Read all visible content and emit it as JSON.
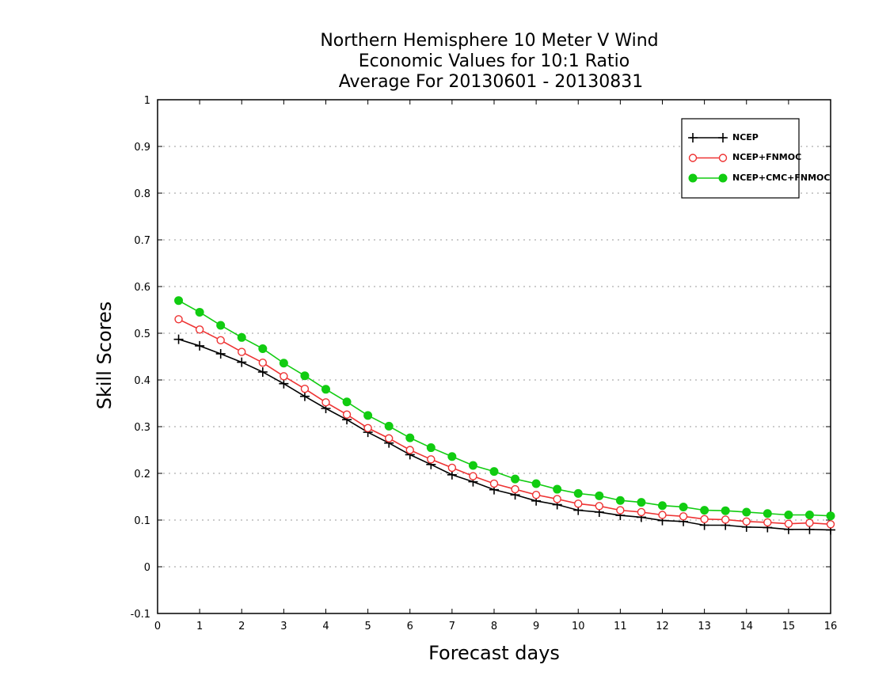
{
  "chart_data": {
    "type": "line",
    "title_lines": [
      "Northern Hemisphere 10 Meter V Wind",
      "Economic Values for 10:1 Ratio",
      "Average For 20130601 - 20130831"
    ],
    "xlabel": "Forecast days",
    "ylabel": "Skill Scores",
    "xlim": [
      0,
      16
    ],
    "ylim": [
      -0.1,
      1
    ],
    "x_ticks": [
      0,
      1,
      2,
      3,
      4,
      5,
      6,
      7,
      8,
      9,
      10,
      11,
      12,
      13,
      14,
      15,
      16
    ],
    "x_tick_labels": [
      "0",
      "1",
      "2",
      "3",
      "4",
      "5",
      "6",
      "7",
      "8",
      "9",
      "10",
      "11",
      "12",
      "13",
      "14",
      "15",
      "16"
    ],
    "y_ticks": [
      -0.1,
      0,
      0.1,
      0.2,
      0.3,
      0.4,
      0.5,
      0.6,
      0.7,
      0.8,
      0.9,
      1
    ],
    "y_tick_labels": [
      "-0.1",
      "0",
      "0.1",
      "0.2",
      "0.3",
      "0.4",
      "0.5",
      "0.6",
      "0.7",
      "0.8",
      "0.9",
      "1"
    ],
    "grid": "horizontal dotted",
    "legend_position": "top-right",
    "x": [
      0.5,
      1,
      1.5,
      2,
      2.5,
      3,
      3.5,
      4,
      4.5,
      5,
      5.5,
      6,
      6.5,
      7,
      7.5,
      8,
      8.5,
      9,
      9.5,
      10,
      10.5,
      11,
      11.5,
      12,
      12.5,
      13,
      13.5,
      14,
      14.5,
      15,
      15.5,
      16
    ],
    "series": [
      {
        "name": "NCEP",
        "color": "#000000",
        "marker": "plus",
        "values": [
          0.487,
          0.473,
          0.456,
          0.438,
          0.417,
          0.392,
          0.365,
          0.339,
          0.315,
          0.288,
          0.265,
          0.24,
          0.219,
          0.197,
          0.182,
          0.165,
          0.154,
          0.141,
          0.133,
          0.121,
          0.117,
          0.11,
          0.106,
          0.099,
          0.097,
          0.089,
          0.089,
          0.085,
          0.084,
          0.08,
          0.08,
          0.079
        ]
      },
      {
        "name": "NCEP+FNMOC",
        "color": "#ee3333",
        "marker": "open-circle",
        "values": [
          0.53,
          0.508,
          0.485,
          0.46,
          0.437,
          0.408,
          0.381,
          0.352,
          0.326,
          0.297,
          0.275,
          0.25,
          0.23,
          0.212,
          0.194,
          0.178,
          0.166,
          0.154,
          0.145,
          0.135,
          0.13,
          0.121,
          0.117,
          0.111,
          0.108,
          0.102,
          0.101,
          0.097,
          0.095,
          0.092,
          0.094,
          0.091
        ]
      },
      {
        "name": "NCEP+CMC+FNMOC",
        "color": "#11cc11",
        "marker": "filled-circle",
        "values": [
          0.57,
          0.545,
          0.517,
          0.491,
          0.467,
          0.436,
          0.409,
          0.38,
          0.353,
          0.324,
          0.301,
          0.276,
          0.255,
          0.236,
          0.217,
          0.204,
          0.188,
          0.178,
          0.166,
          0.157,
          0.152,
          0.142,
          0.138,
          0.131,
          0.128,
          0.121,
          0.12,
          0.117,
          0.114,
          0.111,
          0.111,
          0.109
        ]
      }
    ]
  }
}
